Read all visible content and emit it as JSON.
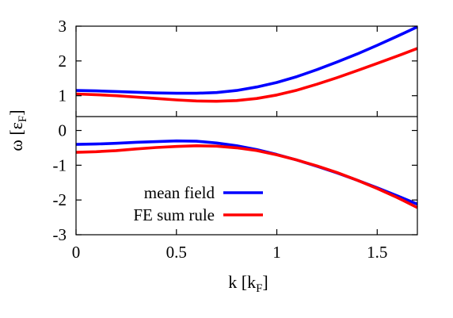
{
  "chart_data": {
    "type": "line",
    "xlabel": {
      "main": "k [k",
      "sub": "F",
      "close": "]"
    },
    "ylabel": {
      "main": "ω [ε",
      "sub": "F",
      "close": "]"
    },
    "xlim": [
      0,
      1.7
    ],
    "ylim_upper": [
      0.4,
      3
    ],
    "ylim_lower": [
      -3,
      0.4
    ],
    "x_ticks": [
      {
        "value": 0,
        "label": "0"
      },
      {
        "value": 0.5,
        "label": "0.5"
      },
      {
        "value": 1,
        "label": "1"
      },
      {
        "value": 1.5,
        "label": "1.5"
      }
    ],
    "y_ticks_upper": [
      {
        "value": 1,
        "label": "1"
      },
      {
        "value": 2,
        "label": "2"
      },
      {
        "value": 3,
        "label": "3"
      }
    ],
    "y_ticks_lower": [
      {
        "value": 0,
        "label": "0"
      },
      {
        "value": -1,
        "label": "-1"
      },
      {
        "value": -2,
        "label": "-2"
      },
      {
        "value": -3,
        "label": "-3"
      }
    ],
    "legend_position": "lower-left",
    "series": [
      {
        "name": "mean field",
        "color": "#0000ff",
        "upper": {
          "x": [
            0,
            0.1,
            0.2,
            0.3,
            0.4,
            0.5,
            0.6,
            0.7,
            0.8,
            0.9,
            1.0,
            1.1,
            1.2,
            1.3,
            1.4,
            1.5,
            1.6,
            1.7
          ],
          "y": [
            1.15,
            1.14,
            1.12,
            1.1,
            1.08,
            1.07,
            1.07,
            1.09,
            1.15,
            1.25,
            1.38,
            1.55,
            1.75,
            1.97,
            2.2,
            2.45,
            2.71,
            2.98
          ]
        },
        "lower": {
          "x": [
            0,
            0.1,
            0.2,
            0.3,
            0.4,
            0.5,
            0.6,
            0.7,
            0.8,
            0.9,
            1.0,
            1.1,
            1.2,
            1.3,
            1.4,
            1.5,
            1.6,
            1.7
          ],
          "y": [
            -0.4,
            -0.39,
            -0.37,
            -0.34,
            -0.32,
            -0.3,
            -0.31,
            -0.36,
            -0.44,
            -0.55,
            -0.69,
            -0.85,
            -1.03,
            -1.22,
            -1.43,
            -1.65,
            -1.88,
            -2.12
          ]
        }
      },
      {
        "name": "FE sum rule",
        "color": "#ff0000",
        "upper": {
          "x": [
            0,
            0.1,
            0.2,
            0.3,
            0.4,
            0.5,
            0.6,
            0.7,
            0.8,
            0.9,
            1.0,
            1.1,
            1.2,
            1.3,
            1.4,
            1.5,
            1.6,
            1.7
          ],
          "y": [
            1.05,
            1.03,
            1.0,
            0.96,
            0.92,
            0.88,
            0.85,
            0.84,
            0.86,
            0.92,
            1.02,
            1.16,
            1.33,
            1.52,
            1.72,
            1.93,
            2.14,
            2.36
          ]
        },
        "lower": {
          "x": [
            0,
            0.1,
            0.2,
            0.3,
            0.4,
            0.5,
            0.6,
            0.7,
            0.8,
            0.9,
            1.0,
            1.1,
            1.2,
            1.3,
            1.4,
            1.5,
            1.6,
            1.7
          ],
          "y": [
            -0.63,
            -0.61,
            -0.58,
            -0.53,
            -0.49,
            -0.46,
            -0.44,
            -0.45,
            -0.5,
            -0.58,
            -0.7,
            -0.85,
            -1.02,
            -1.21,
            -1.43,
            -1.67,
            -1.93,
            -2.22
          ]
        }
      }
    ]
  }
}
